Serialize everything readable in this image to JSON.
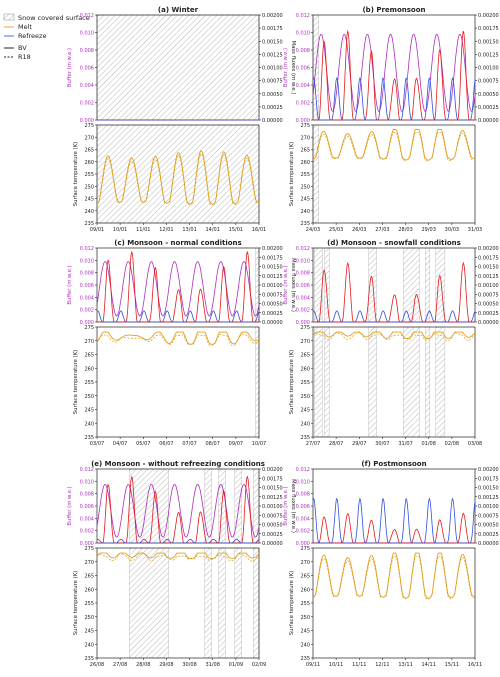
{
  "legend": {
    "snow_label": "Snow covered surface",
    "melt_label": "Melt",
    "refreeze_label": "Refreeze",
    "bv_label": "BV",
    "r18_label": "R18",
    "colors": {
      "melt": "#e8a33c",
      "refreeze": "#4c6fd6",
      "snow_hatch": "#9a9a9a"
    }
  },
  "axis_labels": {
    "buffer": "Buffer (m w.e.)",
    "mass_fluxes": "Mass fluxes (m w.e.)",
    "surface_temperature": "Surface temperature (K)"
  },
  "colors": {
    "buffer": "#b02fbf",
    "melt_line": "#e31a1c",
    "refreeze_line": "#3050e0",
    "temperature": "#e0a020",
    "hatch": "#888888"
  },
  "chart_data": [
    {
      "type": "line",
      "title": "(a) Winter",
      "buffer_ylim": [
        0,
        0.012
      ],
      "buffer_ticks": [
        "0.000",
        "0.002",
        "0.004",
        "0.006",
        "0.008",
        "0.010",
        "0.012"
      ],
      "flux_ylim": [
        0,
        0.002
      ],
      "flux_ticks": [
        "0.00000",
        "0.00025",
        "0.00050",
        "0.00075",
        "0.00100",
        "0.00125",
        "0.00150",
        "0.00175",
        "0.00200"
      ],
      "temp_ylim": [
        235,
        275
      ],
      "temp_ticks": [
        "235",
        "240",
        "245",
        "250",
        "255",
        "260",
        "265",
        "270",
        "275"
      ],
      "xlim": [
        0,
        7
      ],
      "x_ticks": [
        "09/01",
        "10/01",
        "11/01",
        "12/01",
        "13/01",
        "14/01",
        "15/01",
        "16/01"
      ],
      "snow_spans": [
        [
          0,
          7
        ]
      ],
      "pattern": {
        "temp_base": 252,
        "temp_amp": 11,
        "temp_max": 266,
        "buffer_max": 0.0,
        "melt": 0.0,
        "refreeze": 0.0,
        "temp_floor": 244
      }
    },
    {
      "type": "line",
      "title": "(b) Premonsoon",
      "buffer_ylim": [
        0,
        0.012
      ],
      "buffer_ticks": [
        "0.000",
        "0.002",
        "0.004",
        "0.006",
        "0.008",
        "0.010",
        "0.012"
      ],
      "flux_ylim": [
        0,
        0.002
      ],
      "flux_ticks": [
        "0.00000",
        "0.00025",
        "0.00050",
        "0.00075",
        "0.00100",
        "0.00125",
        "0.00150",
        "0.00175",
        "0.00200"
      ],
      "temp_ylim": [
        235,
        275
      ],
      "temp_ticks": [
        "235",
        "240",
        "245",
        "250",
        "255",
        "260",
        "265",
        "270",
        "275"
      ],
      "xlim": [
        0,
        7
      ],
      "x_ticks": [
        "24/03",
        "25/03",
        "26/03",
        "27/03",
        "28/03",
        "29/03",
        "30/03",
        "31/03"
      ],
      "snow_spans": [
        [
          0,
          0.25
        ]
      ],
      "pattern": {
        "temp_base": 266,
        "temp_amp": 7,
        "temp_max": 273.15,
        "buffer_max": 0.0098,
        "melt": 0.0017,
        "refreeze": 0.0008,
        "temp_floor": 262
      }
    },
    {
      "type": "line",
      "title": "(c) Monsoon - normal conditions",
      "buffer_ylim": [
        0,
        0.012
      ],
      "buffer_ticks": [
        "0.000",
        "0.002",
        "0.004",
        "0.006",
        "0.008",
        "0.010",
        "0.012"
      ],
      "flux_ylim": [
        0,
        0.002
      ],
      "flux_ticks": [
        "0.00000",
        "0.00025",
        "0.00050",
        "0.00075",
        "0.00100",
        "0.00125",
        "0.00150",
        "0.00175",
        "0.00200"
      ],
      "temp_ylim": [
        235,
        275
      ],
      "temp_ticks": [
        "235",
        "240",
        "245",
        "250",
        "255",
        "260",
        "265",
        "270",
        "275"
      ],
      "xlim": [
        0,
        7
      ],
      "x_ticks": [
        "03/07",
        "04/07",
        "05/07",
        "06/07",
        "07/07",
        "08/07",
        "09/07",
        "10/07"
      ],
      "snow_spans": [
        [
          6.85,
          7
        ]
      ],
      "pattern": {
        "temp_base": 271.5,
        "temp_amp": 2,
        "temp_max": 273.15,
        "buffer_max": 0.0098,
        "melt": 0.0019,
        "refreeze": 0.0003,
        "temp_floor": 269
      }
    },
    {
      "type": "line",
      "title": "(d) Monsoon - snowfall conditions",
      "buffer_ylim": [
        0,
        0.012
      ],
      "buffer_ticks": [
        "0.000",
        "0.002",
        "0.004",
        "0.006",
        "0.008",
        "0.010",
        "0.012"
      ],
      "flux_ylim": [
        0,
        0.002
      ],
      "flux_ticks": [
        "0.00000",
        "0.00025",
        "0.00050",
        "0.00075",
        "0.00100",
        "0.00125",
        "0.00150",
        "0.00175",
        "0.00200"
      ],
      "temp_ylim": [
        235,
        275
      ],
      "temp_ticks": [
        "235",
        "240",
        "245",
        "250",
        "255",
        "260",
        "265",
        "270",
        "275"
      ],
      "xlim": [
        0,
        7
      ],
      "x_ticks": [
        "27/07",
        "28/07",
        "29/07",
        "30/07",
        "31/07",
        "01/08",
        "02/08",
        "03/08"
      ],
      "snow_spans": [
        [
          0.05,
          0.4
        ],
        [
          0.5,
          0.7
        ],
        [
          2.4,
          2.75
        ],
        [
          3.9,
          4.6
        ],
        [
          4.85,
          5.05
        ],
        [
          5.3,
          5.7
        ]
      ],
      "pattern": {
        "temp_base": 272.5,
        "temp_amp": 0.7,
        "temp_max": 273.15,
        "buffer_max": 0.0,
        "melt": 0.0016,
        "refreeze": 0.0003,
        "temp_floor": 271
      }
    },
    {
      "type": "line",
      "title": "(e) Monsoon - without refreezing conditions",
      "buffer_ylim": [
        0,
        0.012
      ],
      "buffer_ticks": [
        "0.000",
        "0.002",
        "0.004",
        "0.006",
        "0.008",
        "0.010",
        "0.012"
      ],
      "flux_ylim": [
        0,
        0.002
      ],
      "flux_ticks": [
        "0.00000",
        "0.00025",
        "0.00050",
        "0.00075",
        "0.00100",
        "0.00125",
        "0.00150",
        "0.00175",
        "0.00200"
      ],
      "temp_ylim": [
        235,
        275
      ],
      "temp_ticks": [
        "235",
        "240",
        "245",
        "250",
        "255",
        "260",
        "265",
        "270",
        "275"
      ],
      "xlim": [
        0,
        7
      ],
      "x_ticks": [
        "26/08",
        "27/08",
        "28/08",
        "29/08",
        "30/08",
        "31/08",
        "01/09",
        "02/09"
      ],
      "snow_spans": [
        [
          1.4,
          3.1
        ],
        [
          4.65,
          4.95
        ],
        [
          5.25,
          5.55
        ],
        [
          5.95,
          6.25
        ],
        [
          6.75,
          7
        ]
      ],
      "pattern": {
        "temp_base": 272.5,
        "temp_amp": 0.6,
        "temp_max": 273.15,
        "buffer_max": 0.0095,
        "melt": 0.0018,
        "refreeze": 0.0001,
        "temp_floor": 271.5
      }
    },
    {
      "type": "line",
      "title": "(f) Postmonsoon",
      "buffer_ylim": [
        0,
        0.012
      ],
      "buffer_ticks": [
        "0.000",
        "0.002",
        "0.004",
        "0.006",
        "0.008",
        "0.010",
        "0.012"
      ],
      "flux_ylim": [
        0,
        0.002
      ],
      "flux_ticks": [
        "0.00000",
        "0.00025",
        "0.00050",
        "0.00075",
        "0.00100",
        "0.00125",
        "0.00150",
        "0.00175",
        "0.00200"
      ],
      "temp_ylim": [
        235,
        275
      ],
      "temp_ticks": [
        "235",
        "240",
        "245",
        "250",
        "255",
        "260",
        "265",
        "270",
        "275"
      ],
      "xlim": [
        0,
        7
      ],
      "x_ticks": [
        "09/11",
        "10/11",
        "11/11",
        "12/11",
        "13/11",
        "14/11",
        "15/11",
        "16/11"
      ],
      "snow_spans": [],
      "pattern": {
        "temp_base": 264,
        "temp_amp": 9,
        "temp_max": 273.15,
        "buffer_max": 0.0,
        "melt": 0.0008,
        "refreeze": 0.0012,
        "temp_floor": 258
      }
    }
  ]
}
